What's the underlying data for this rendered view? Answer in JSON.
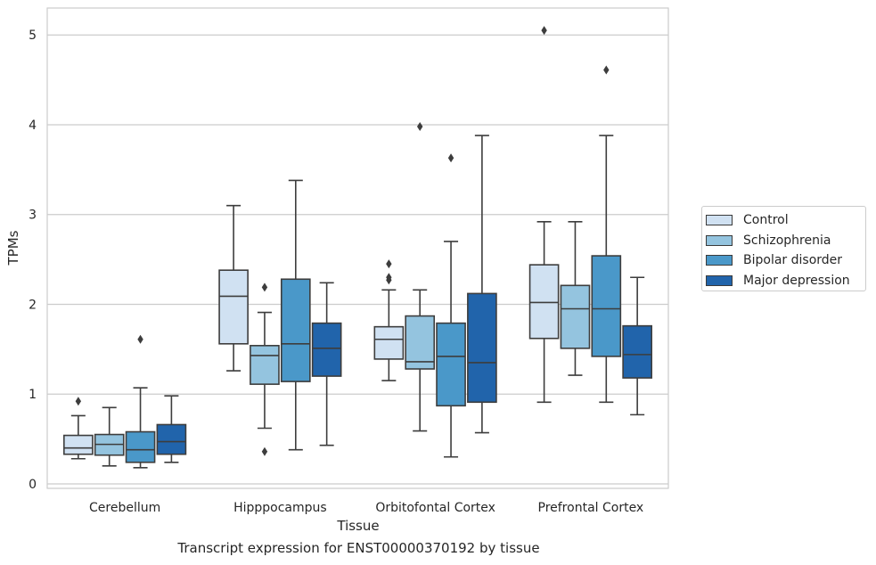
{
  "chart_data": {
    "type": "box",
    "caption": "Transcript expression for ENST00000370192 by tissue",
    "xlabel": "Tissue",
    "ylabel": "TPMs",
    "ylim": [
      -0.05,
      5.3
    ],
    "yticks": [
      0,
      1,
      2,
      3,
      4,
      5
    ],
    "grid": "horizontal",
    "legend_placement": "right",
    "categories": [
      "Cerebellum",
      "Hipppocampus",
      "Orbitofontal Cortex",
      "Prefrontal Cortex"
    ],
    "series": [
      {
        "name": "Control",
        "color": "#d0e1f2",
        "boxes": [
          {
            "whisker_low": 0.28,
            "q1": 0.33,
            "median": 0.4,
            "q3": 0.54,
            "whisker_high": 0.76,
            "outliers": [
              0.92
            ]
          },
          {
            "whisker_low": 1.26,
            "q1": 1.56,
            "median": 2.09,
            "q3": 2.38,
            "whisker_high": 3.1,
            "outliers": []
          },
          {
            "whisker_low": 1.15,
            "q1": 1.39,
            "median": 1.61,
            "q3": 1.75,
            "whisker_high": 2.16,
            "outliers": [
              2.27,
              2.3,
              2.45
            ]
          },
          {
            "whisker_low": 0.91,
            "q1": 1.62,
            "median": 2.02,
            "q3": 2.44,
            "whisker_high": 2.92,
            "outliers": [
              5.05
            ]
          }
        ]
      },
      {
        "name": "Schizophrenia",
        "color": "#94c4df",
        "boxes": [
          {
            "whisker_low": 0.2,
            "q1": 0.32,
            "median": 0.44,
            "q3": 0.55,
            "whisker_high": 0.85,
            "outliers": []
          },
          {
            "whisker_low": 0.62,
            "q1": 1.11,
            "median": 1.43,
            "q3": 1.54,
            "whisker_high": 1.91,
            "outliers": [
              0.36,
              2.19
            ]
          },
          {
            "whisker_low": 0.59,
            "q1": 1.28,
            "median": 1.36,
            "q3": 1.87,
            "whisker_high": 2.16,
            "outliers": [
              3.98
            ]
          },
          {
            "whisker_low": 1.21,
            "q1": 1.51,
            "median": 1.95,
            "q3": 2.21,
            "whisker_high": 2.92,
            "outliers": []
          }
        ]
      },
      {
        "name": "Bipolar disorder",
        "color": "#4a98c9",
        "boxes": [
          {
            "whisker_low": 0.18,
            "q1": 0.24,
            "median": 0.38,
            "q3": 0.58,
            "whisker_high": 1.07,
            "outliers": [
              1.61
            ]
          },
          {
            "whisker_low": 0.38,
            "q1": 1.14,
            "median": 1.56,
            "q3": 2.28,
            "whisker_high": 3.38,
            "outliers": []
          },
          {
            "whisker_low": 0.3,
            "q1": 0.87,
            "median": 1.42,
            "q3": 1.79,
            "whisker_high": 2.7,
            "outliers": [
              3.63
            ]
          },
          {
            "whisker_low": 0.91,
            "q1": 1.42,
            "median": 1.95,
            "q3": 2.54,
            "whisker_high": 3.88,
            "outliers": [
              4.61
            ]
          }
        ]
      },
      {
        "name": "Major depression",
        "color": "#2164ab",
        "boxes": [
          {
            "whisker_low": 0.24,
            "q1": 0.33,
            "median": 0.47,
            "q3": 0.66,
            "whisker_high": 0.98,
            "outliers": []
          },
          {
            "whisker_low": 0.43,
            "q1": 1.2,
            "median": 1.51,
            "q3": 1.79,
            "whisker_high": 2.24,
            "outliers": []
          },
          {
            "whisker_low": 0.57,
            "q1": 0.91,
            "median": 1.35,
            "q3": 2.12,
            "whisker_high": 3.88,
            "outliers": []
          },
          {
            "whisker_low": 0.77,
            "q1": 1.18,
            "median": 1.44,
            "q3": 1.76,
            "whisker_high": 2.3,
            "outliers": []
          }
        ]
      }
    ]
  }
}
